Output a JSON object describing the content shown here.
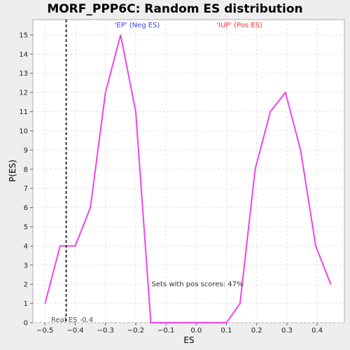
{
  "chart_data": {
    "type": "line",
    "title": "MORF_PPP6C: Random ES distribution",
    "xlabel": "ES",
    "ylabel": "P(ES)",
    "xlim": [
      -0.54,
      0.49
    ],
    "ylim": [
      0,
      15.8
    ],
    "x_ticks": [
      -0.5,
      -0.4,
      -0.3,
      -0.2,
      -0.1,
      0.0,
      0.1,
      0.2,
      0.3,
      0.4
    ],
    "x_tick_labels": [
      "−0.5",
      "−0.4",
      "−0.3",
      "−0.2",
      "−0.1",
      "0.0",
      "0.1",
      "0.2",
      "0.3",
      "0.4"
    ],
    "y_ticks": [
      0,
      1,
      2,
      3,
      4,
      5,
      6,
      7,
      8,
      9,
      10,
      11,
      12,
      13,
      14,
      15
    ],
    "y_tick_labels": [
      "0",
      "1",
      "2",
      "3",
      "4",
      "5",
      "6",
      "7",
      "8",
      "9",
      "10",
      "11",
      "12",
      "13",
      "14",
      "15"
    ],
    "grid": true,
    "series": [
      {
        "color": "#ee44ee",
        "x": [
          -0.5,
          -0.45,
          -0.4,
          -0.35,
          -0.3,
          -0.25,
          -0.2,
          -0.15,
          -0.1,
          -0.05,
          0.0,
          0.05,
          0.1,
          0.145,
          0.195,
          0.245,
          0.295,
          0.345,
          0.395,
          0.445
        ],
        "y": [
          1,
          4,
          4,
          6,
          12,
          15,
          11,
          0,
          0,
          0,
          0,
          0,
          0,
          1,
          8,
          11,
          12,
          9,
          4,
          2
        ]
      }
    ],
    "real_es": -0.43,
    "annotations": {
      "neg_label": "'EP' (Neg ES)",
      "pos_label": "'IUP' (Pos ES)",
      "pos_scores": "Sets with pos scores: 47%",
      "real_es_label": "Real ES -0.4"
    },
    "colors": {
      "line": "#ee44ee",
      "neg_label": "#4444dd",
      "pos_label": "#ee3333",
      "plot_background": "#ffffff",
      "page_background": "#eeeeee",
      "grid": "#e4e4e4"
    }
  }
}
